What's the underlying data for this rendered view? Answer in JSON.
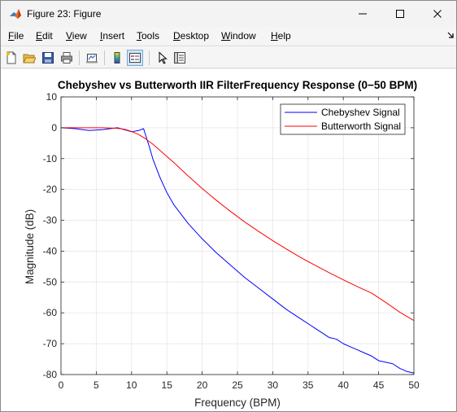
{
  "window": {
    "title": "Figure 23: Figure",
    "minimize_icon": "minimize-icon",
    "maximize_icon": "maximize-icon",
    "close_icon": "close-icon"
  },
  "menu": {
    "items": [
      {
        "label": "File",
        "mnemonic": "F",
        "rest": "ile"
      },
      {
        "label": "Edit",
        "mnemonic": "E",
        "rest": "dit"
      },
      {
        "label": "View",
        "mnemonic": "V",
        "rest": "iew"
      },
      {
        "label": "Insert",
        "mnemonic": "I",
        "rest": "nsert"
      },
      {
        "label": "Tools",
        "mnemonic": "T",
        "rest": "ools"
      },
      {
        "label": "Desktop",
        "mnemonic": "D",
        "rest": "esktop"
      },
      {
        "label": "Window",
        "mnemonic": "W",
        "rest": "indow"
      },
      {
        "label": "Help",
        "mnemonic": "H",
        "rest": "elp"
      }
    ]
  },
  "toolbar": {
    "buttons": [
      {
        "name": "new-figure-icon"
      },
      {
        "name": "open-file-icon"
      },
      {
        "name": "save-icon"
      },
      {
        "name": "print-icon"
      },
      {
        "name": "link-plot-icon"
      },
      {
        "name": "insert-colorbar-icon"
      },
      {
        "name": "insert-legend-icon",
        "pressed": true
      },
      {
        "name": "edit-plot-icon"
      },
      {
        "name": "property-inspector-icon"
      }
    ]
  },
  "colors": {
    "chebyshev": "#0000ff",
    "butterworth": "#ff0000",
    "grid": "#e6e6e6"
  },
  "chart_data": {
    "type": "line",
    "title": "Chebyshev vs Butterworth IIR FilterFrequency Response (0−50 BPM)",
    "xlabel": "Frequency (BPM)",
    "ylabel": "Magnitude (dB)",
    "xlim": [
      0,
      50
    ],
    "ylim": [
      -80,
      10
    ],
    "xticks": [
      0,
      5,
      10,
      15,
      20,
      25,
      30,
      35,
      40,
      45,
      50
    ],
    "yticks": [
      10,
      0,
      -10,
      -20,
      -30,
      -40,
      -50,
      -60,
      -70,
      -80
    ],
    "ytick_labels": [
      "10",
      "0",
      "-10",
      "-20",
      "-30",
      "-40",
      "-50",
      "-60",
      "-70",
      "-80"
    ],
    "grid": true,
    "legend_position": "top-right",
    "series": [
      {
        "name": "Chebyshev Signal",
        "color": "#0000ff",
        "x": [
          0,
          2,
          4,
          6,
          8,
          10,
          11,
          11.7,
          12,
          12.5,
          13,
          14,
          15,
          16,
          18,
          20,
          22,
          24,
          26,
          28,
          30,
          32,
          34,
          36,
          37,
          38,
          39,
          40,
          41,
          42,
          43,
          44,
          45,
          46,
          47,
          48,
          49,
          50
        ],
        "y": [
          0,
          -0.3,
          -0.9,
          -0.6,
          0,
          -1.3,
          -0.9,
          -0.3,
          -2.5,
          -6,
          -10,
          -16,
          -21,
          -25,
          -31,
          -36,
          -40.5,
          -44.5,
          -48.5,
          -52,
          -55.5,
          -59,
          -62,
          -65,
          -66.5,
          -68,
          -68.5,
          -70,
          -71,
          -72,
          -73,
          -74,
          -75.5,
          -76,
          -76.5,
          -78,
          -79,
          -79.5
        ]
      },
      {
        "name": "Butterworth Signal",
        "color": "#ff0000",
        "x": [
          0,
          2,
          4,
          6,
          8,
          9,
          10,
          11,
          12,
          13,
          14,
          15,
          16,
          18,
          20,
          22,
          24,
          26,
          28,
          30,
          32,
          34,
          36,
          38,
          40,
          42,
          44,
          46,
          48,
          50
        ],
        "y": [
          0,
          0,
          0,
          0,
          -0.2,
          -0.5,
          -1.2,
          -2.2,
          -3.6,
          -5.3,
          -7.3,
          -9.3,
          -11.3,
          -15.6,
          -19.7,
          -23.5,
          -27.1,
          -30.5,
          -33.6,
          -36.6,
          -39.4,
          -42.1,
          -44.6,
          -47,
          -49.3,
          -51.5,
          -53.6,
          -56.6,
          -59.8,
          -62.5
        ]
      }
    ]
  }
}
